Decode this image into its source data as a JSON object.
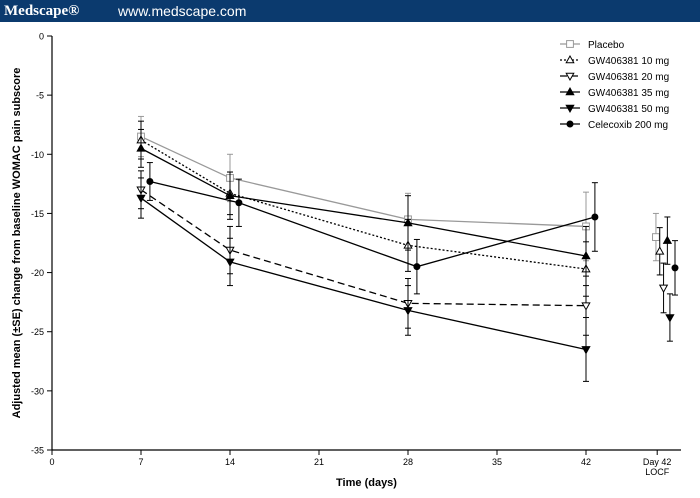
{
  "header": {
    "brand": "Medscape®",
    "url": "www.medscape.com"
  },
  "colors": {
    "header_bg": "#0b3a6e",
    "placebo": "#999999",
    "series": "#000000"
  },
  "chart_data": {
    "type": "line",
    "xlabel": "Time (days)",
    "ylabel": "Adjusted mean (±SE) change from baseline WOMAC pain subscore",
    "xlim": [
      0,
      46
    ],
    "ylim": [
      -35,
      0
    ],
    "x_ticks": [
      0,
      7,
      14,
      21,
      28,
      35,
      42
    ],
    "x_tick_labels": [
      "0",
      "7",
      "14",
      "21",
      "28",
      "35",
      "42"
    ],
    "extra_x_tick": {
      "x": 47.6,
      "label_lines": [
        "Day 42",
        "LOCF"
      ]
    },
    "y_ticks": [
      0,
      -5,
      -10,
      -15,
      -20,
      -25,
      -30,
      -35
    ],
    "y_tick_labels": [
      "0",
      "-5",
      "-10",
      "-15",
      "-20",
      "-25",
      "-30",
      "-35"
    ],
    "grid": false,
    "legend_position": "top-right",
    "series": [
      {
        "name": "Placebo",
        "marker": "open-square",
        "dash": "solid",
        "color": "#999999",
        "x": [
          7,
          14,
          28,
          42
        ],
        "values": [
          -8.5,
          -12.0,
          -15.5,
          -16.1
        ],
        "se": [
          1.7,
          2.0,
          2.2,
          2.9
        ],
        "locf": {
          "x": 47.5,
          "value": -17.0,
          "se": 2.0
        }
      },
      {
        "name": "GW406381 10 mg",
        "marker": "open-triangle-up",
        "dash": "dotted",
        "color": "#000000",
        "x": [
          7,
          14,
          28,
          42
        ],
        "values": [
          -8.8,
          -13.3,
          -17.7,
          -19.7
        ],
        "se": [
          1.6,
          1.8,
          2.2,
          2.3
        ],
        "locf": {
          "x": 47.8,
          "value": -18.2,
          "se": 2.0
        }
      },
      {
        "name": "GW406381 20 mg",
        "marker": "open-triangle-down",
        "dash": "dashed",
        "color": "#000000",
        "x": [
          7,
          14,
          28,
          42
        ],
        "values": [
          -13.0,
          -18.1,
          -22.6,
          -22.8
        ],
        "se": [
          1.6,
          2.0,
          2.1,
          2.5
        ],
        "locf": {
          "x": 48.1,
          "value": -21.3,
          "se": 2.1
        }
      },
      {
        "name": "GW406381 35 mg",
        "marker": "filled-triangle-up",
        "dash": "solid",
        "color": "#000000",
        "x": [
          7,
          14,
          28,
          42
        ],
        "values": [
          -9.5,
          -13.5,
          -15.8,
          -18.6
        ],
        "se": [
          1.6,
          2.0,
          2.3,
          2.5
        ],
        "locf": {
          "x": 48.4,
          "value": -17.3,
          "se": 2.0
        }
      },
      {
        "name": "GW406381 50 mg",
        "marker": "filled-triangle-down",
        "dash": "solid",
        "color": "#000000",
        "x": [
          7,
          14,
          28,
          42
        ],
        "values": [
          -13.7,
          -19.1,
          -23.2,
          -26.5
        ],
        "se": [
          1.7,
          2.0,
          2.1,
          2.7
        ],
        "locf": {
          "x": 48.6,
          "value": -23.8,
          "se": 2.0
        }
      },
      {
        "name": "Celecoxib 200 mg",
        "marker": "filled-circle",
        "dash": "solid",
        "color": "#000000",
        "x": [
          7.7,
          14.7,
          28.7,
          42.7
        ],
        "values": [
          -12.3,
          -14.1,
          -19.5,
          -15.3
        ],
        "se": [
          1.6,
          2.0,
          2.3,
          2.9
        ],
        "locf": {
          "x": 49.0,
          "value": -19.6,
          "se": 2.3
        }
      }
    ]
  }
}
